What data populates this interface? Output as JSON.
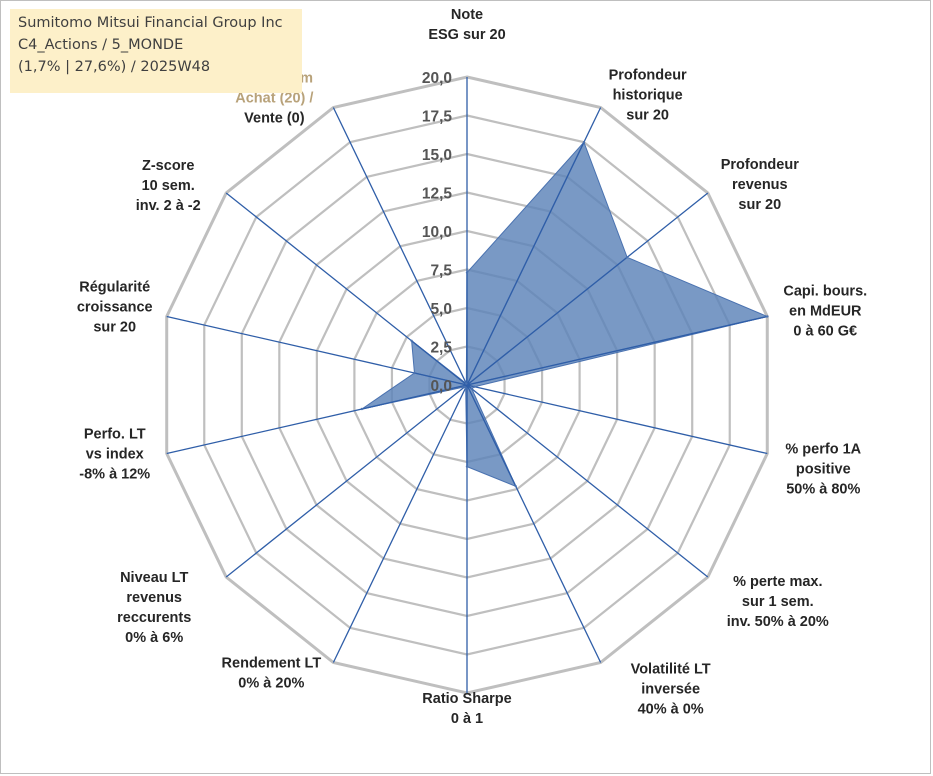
{
  "title": {
    "line1": "Sumitomo Mitsui Financial Group Inc",
    "line2": "C4_Actions / 5_MONDE",
    "line3": "(1,7% | 27,6%) / 2025W48"
  },
  "colors": {
    "fill": "#5b82b8",
    "fill_stroke": "#4a72b0",
    "spoke": "#2f5ea8",
    "grid": "#bfbfbf",
    "outer_ring": "#bfbfbf",
    "title_bg": "#fdf0c9",
    "momentum_label": "#b8a27a"
  },
  "chart_data": {
    "type": "radar",
    "title": "",
    "rmin": 0,
    "rmax": 20,
    "ring_step": 2.5,
    "tick_labels": [
      "0,0",
      "2,5",
      "5,0",
      "7,5",
      "10,0",
      "12,5",
      "15,0",
      "17,5",
      "20,0"
    ],
    "axes": [
      {
        "lines": [
          "Note",
          "ESG sur 20"
        ],
        "value": 7.3
      },
      {
        "lines": [
          "Profondeur",
          "historique",
          "sur 20"
        ],
        "value": 17.5
      },
      {
        "lines": [
          "Profondeur",
          "revenus",
          "sur 20"
        ],
        "value": 13.3
      },
      {
        "lines": [
          "Capi. bours.",
          "en MdEUR",
          "0 à 60 G€"
        ],
        "value": 20.0
      },
      {
        "lines": [
          "% perfo 1A",
          "positive",
          "50% à 80%"
        ],
        "value": 0.5
      },
      {
        "lines": [
          "% perte max.",
          "sur 1 sem.",
          "inv. 50% à 20%"
        ],
        "value": 0.4
      },
      {
        "lines": [
          "Volatilité LT",
          "inversée",
          "40% à 0%"
        ],
        "value": 7.3
      },
      {
        "lines": [
          "Ratio Sharpe",
          "0 à 1"
        ],
        "value": 5.3
      },
      {
        "lines": [
          "Rendement LT",
          "0% à 20%"
        ],
        "value": 0.2
      },
      {
        "lines": [
          "Niveau LT",
          "revenus",
          "reccurents",
          "0% à 6%"
        ],
        "value": 0.2
      },
      {
        "lines": [
          "Perfo. LT",
          "vs index",
          "-8% à 12%"
        ],
        "value": 7.0
      },
      {
        "lines": [
          "Régularité",
          "croissance",
          "sur 20"
        ],
        "value": 3.5
      },
      {
        "lines": [
          "Z-score",
          "10 sem.",
          "inv. 2 à -2"
        ],
        "value": 4.6
      },
      {
        "lines": [
          "Momentum",
          "Achat (20) /",
          "Vente (0)"
        ],
        "value": 0.1
      }
    ]
  }
}
